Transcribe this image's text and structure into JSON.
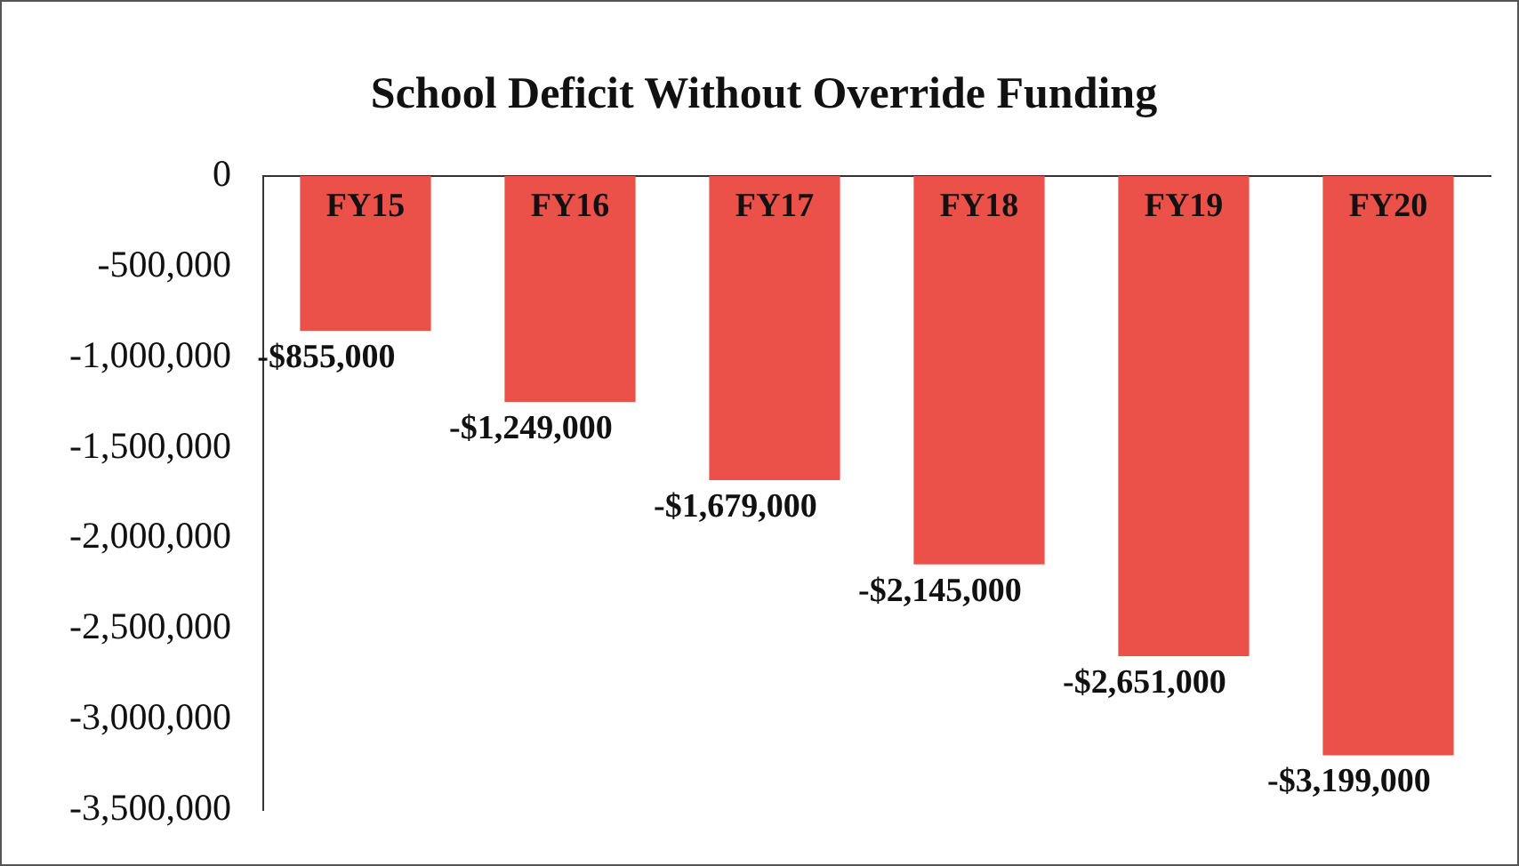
{
  "chart_data": {
    "type": "bar",
    "title": "School Deficit Without Override Funding",
    "categories": [
      "FY15",
      "FY16",
      "FY17",
      "FY18",
      "FY19",
      "FY20"
    ],
    "values": [
      -855000,
      -1249000,
      -1679000,
      -2145000,
      -2651000,
      -3199000
    ],
    "value_labels": [
      "-$855,000",
      "-$1,249,000",
      "-$1,679,000",
      "-$2,145,000",
      "-$2,651,000",
      "-$3,199,000"
    ],
    "color": "#ec5149",
    "ylim": [
      -3500000,
      0
    ],
    "yticks": [
      {
        "value": 0,
        "label": "0"
      },
      {
        "value": -500000,
        "label": "-500,000"
      },
      {
        "value": -1000000,
        "label": "-1,000,000"
      },
      {
        "value": -1500000,
        "label": "-1,500,000"
      },
      {
        "value": -2000000,
        "label": "-2,000,000"
      },
      {
        "value": -2500000,
        "label": "-2,500,000"
      },
      {
        "value": -3000000,
        "label": "-3,000,000"
      },
      {
        "value": -3500000,
        "label": "-3,500,000"
      }
    ],
    "grid": false,
    "legend": false
  }
}
